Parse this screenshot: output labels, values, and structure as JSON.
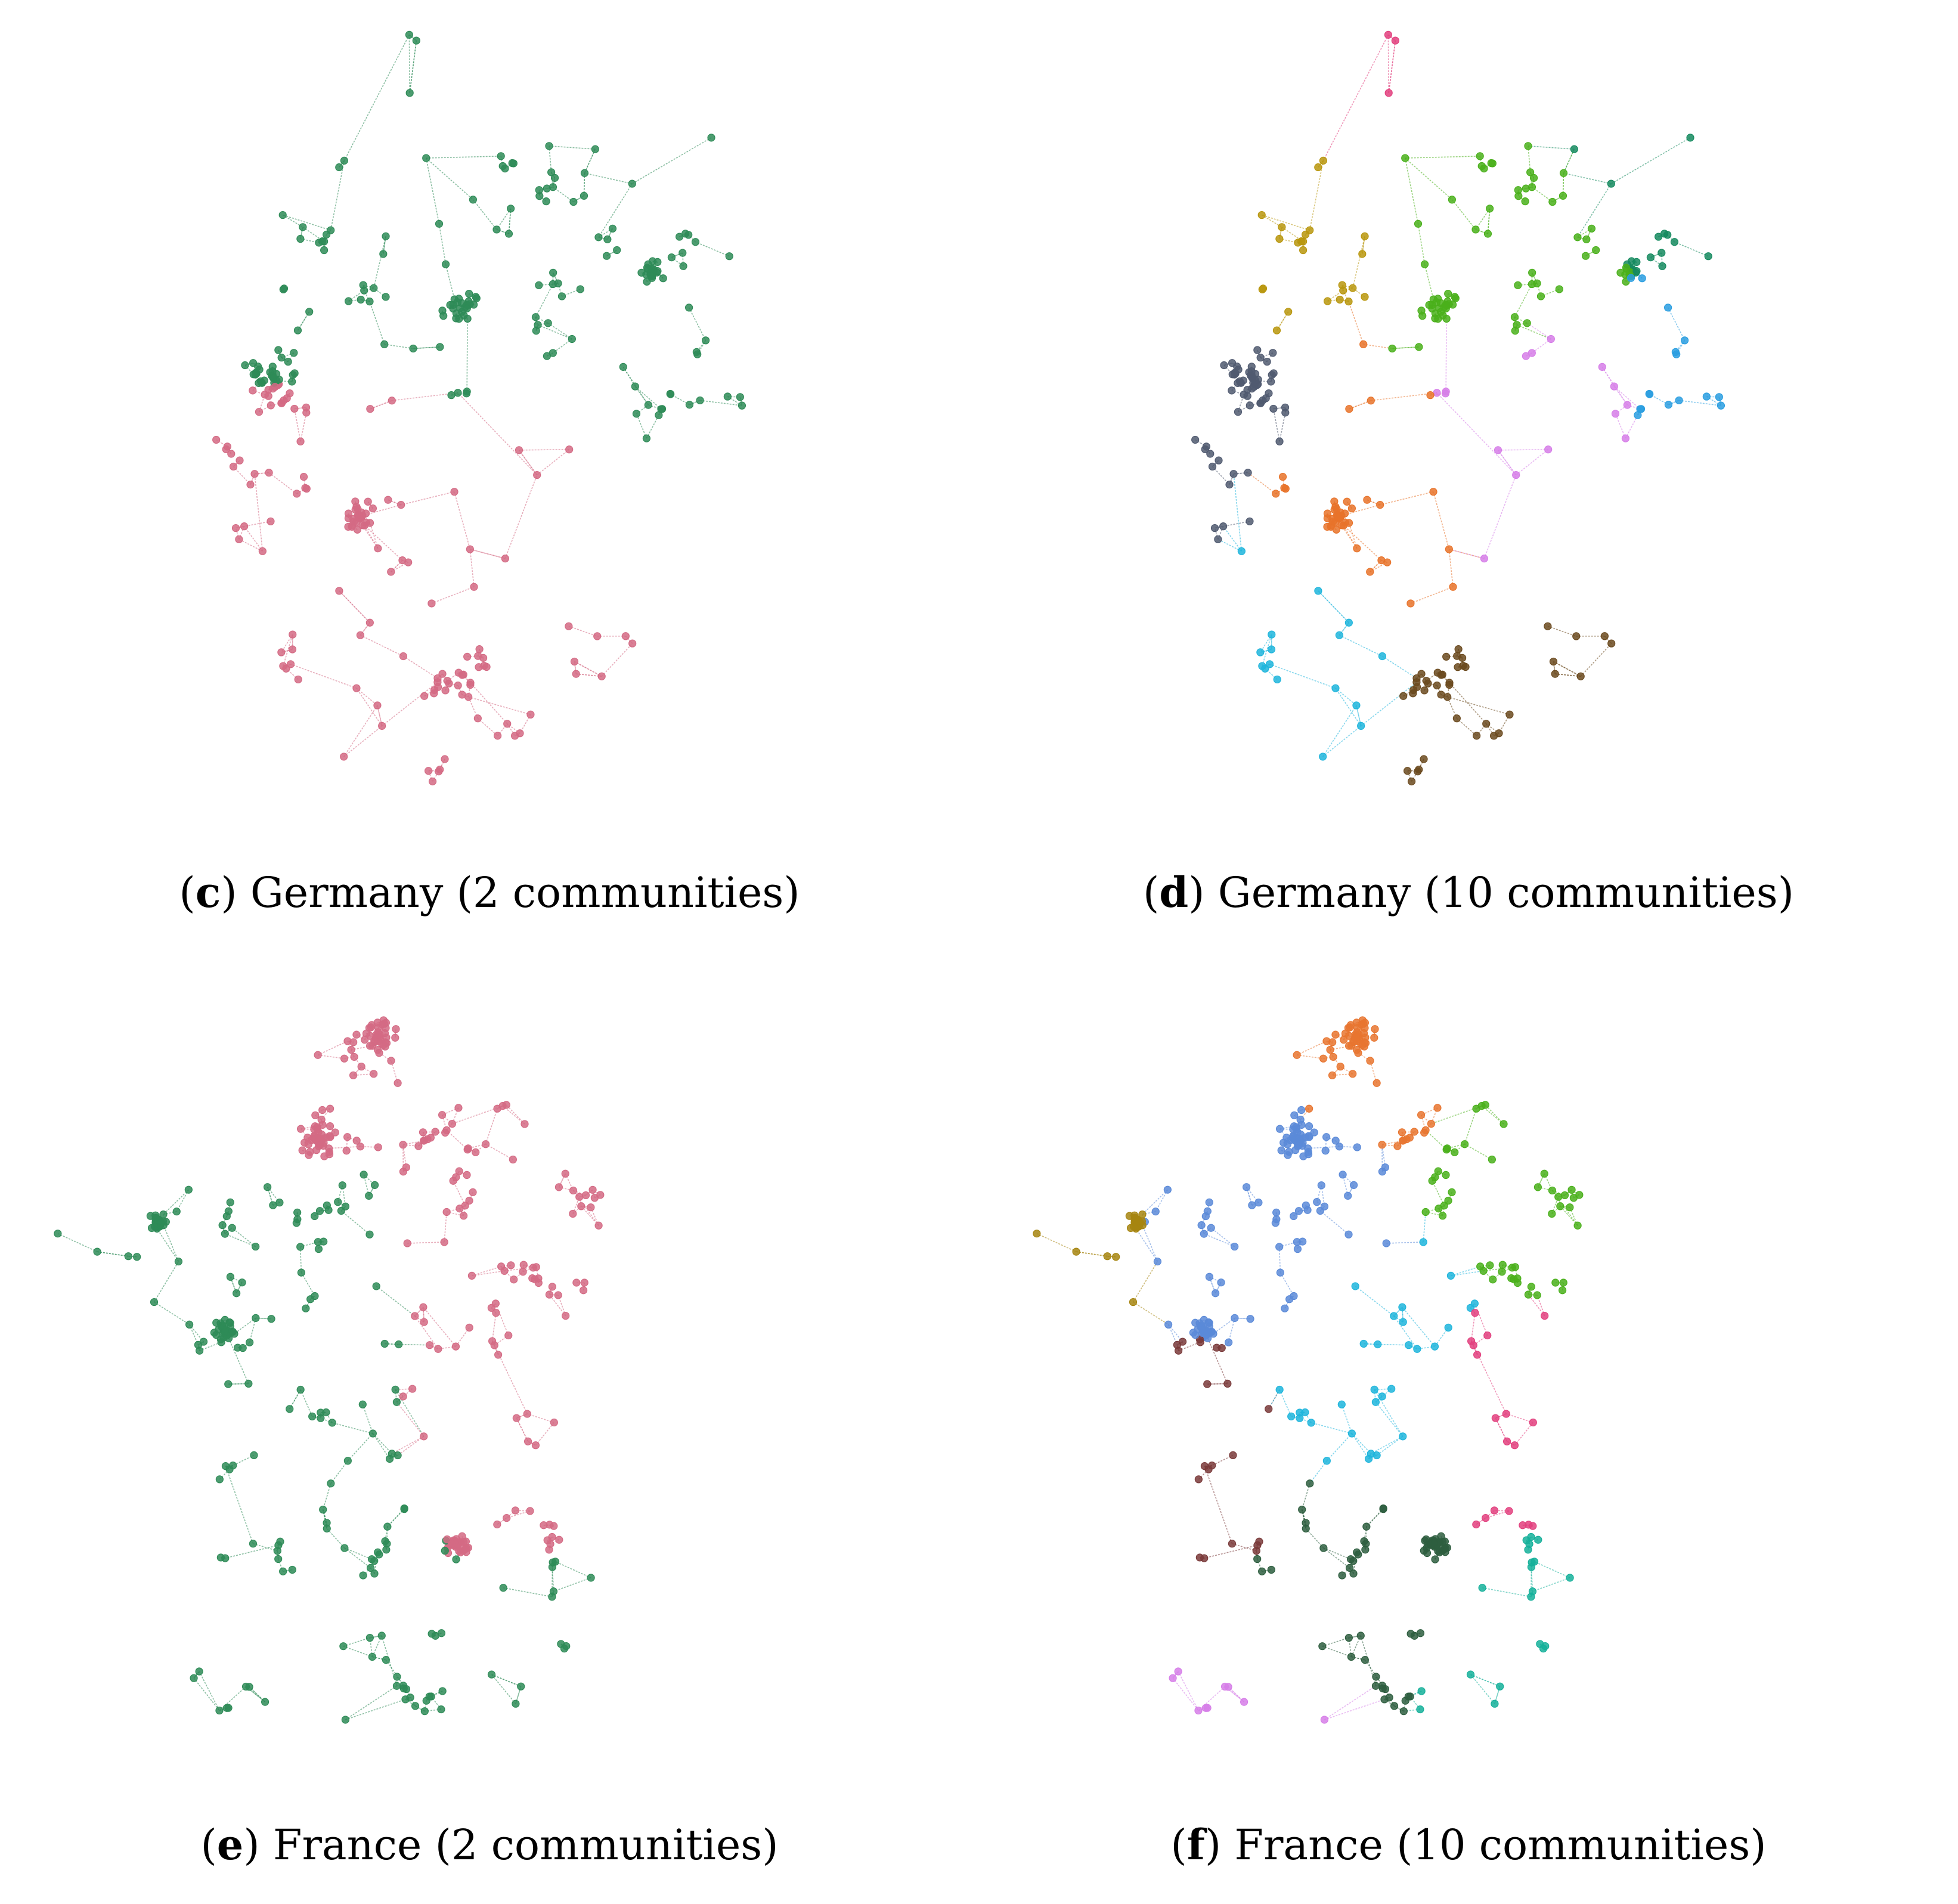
{
  "panels": [
    {
      "letter": "c",
      "caption": "Germany (2 communities)",
      "country": "germany",
      "communities": 2,
      "colors": [
        "#2e8b57",
        "#d46a84"
      ]
    },
    {
      "letter": "d",
      "caption": "Germany (10 communities)",
      "country": "germany",
      "communities": 10,
      "colors": [
        "#1fb5dc",
        "#158a5f",
        "#b8960d",
        "#d67ee8",
        "#6b4a1f",
        "#505a70",
        "#4ab01b",
        "#e2407e",
        "#e8732a",
        "#2a9ee0"
      ]
    },
    {
      "letter": "e",
      "caption": "France (2 communities)",
      "country": "france",
      "communities": 2,
      "colors": [
        "#2e8b57",
        "#d46a84"
      ]
    },
    {
      "letter": "f",
      "caption": "France (10 communities)",
      "country": "france",
      "communities": 10,
      "colors": [
        "#1fb5dc",
        "#a68510",
        "#e87530",
        "#d67ee8",
        "#15b09a",
        "#4ab01b",
        "#5b8ad8",
        "#7a3a3a",
        "#2e5e3f",
        "#e2407e"
      ]
    }
  ]
}
